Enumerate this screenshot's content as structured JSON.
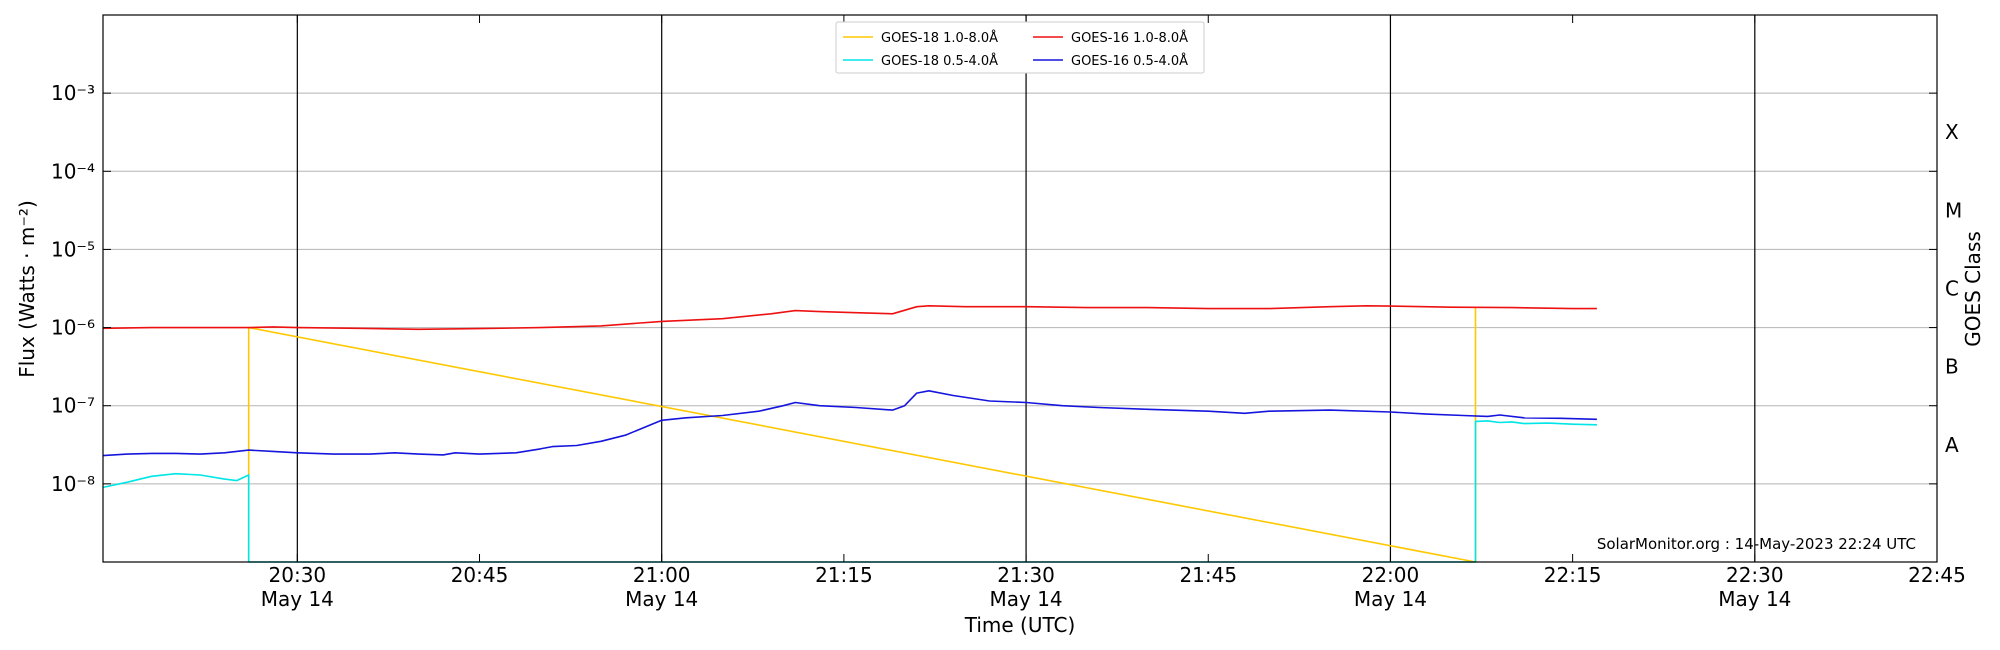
{
  "chart_data": {
    "type": "line",
    "xlabel": "Time (UTC)",
    "ylabel": "Flux (Watts · m⁻²)",
    "y2label": "GOES Class",
    "yscale": "log",
    "xlim": [
      "20:14",
      "22:45"
    ],
    "ylim": [
      1e-09,
      0.01
    ],
    "grid": "y",
    "legend_position": "top-center",
    "credit": "SolarMonitor.org : 14-May-2023 22:24 UTC",
    "x_ticks": [
      {
        "t": "20:30",
        "label": "20:30",
        "sub": "May 14"
      },
      {
        "t": "20:45",
        "label": "20:45",
        "sub": ""
      },
      {
        "t": "21:00",
        "label": "21:00",
        "sub": "May 14"
      },
      {
        "t": "21:15",
        "label": "21:15",
        "sub": ""
      },
      {
        "t": "21:30",
        "label": "21:30",
        "sub": "May 14"
      },
      {
        "t": "21:45",
        "label": "21:45",
        "sub": ""
      },
      {
        "t": "22:00",
        "label": "22:00",
        "sub": "May 14"
      },
      {
        "t": "22:15",
        "label": "22:15",
        "sub": ""
      },
      {
        "t": "22:30",
        "label": "22:30",
        "sub": "May 14"
      },
      {
        "t": "22:45",
        "label": "22:45",
        "sub": ""
      }
    ],
    "vlines": [
      "20:30",
      "21:00",
      "21:30",
      "22:00",
      "22:30"
    ],
    "y_ticks": [
      {
        "value": 1e-08,
        "label": "10⁻⁸"
      },
      {
        "value": 1e-07,
        "label": "10⁻⁷"
      },
      {
        "value": 1e-06,
        "label": "10⁻⁶"
      },
      {
        "value": 1e-05,
        "label": "10⁻⁵"
      },
      {
        "value": 0.0001,
        "label": "10⁻⁴"
      },
      {
        "value": 0.001,
        "label": "10⁻³"
      }
    ],
    "goes_classes": [
      {
        "label": "A",
        "value": 3.16e-08
      },
      {
        "label": "B",
        "value": 3.16e-07
      },
      {
        "label": "C",
        "value": 3.16e-06
      },
      {
        "label": "M",
        "value": 3.16e-05
      },
      {
        "label": "X",
        "value": 0.000316
      }
    ],
    "series": [
      {
        "name": "GOES-18 1.0-8.0Å",
        "color": "#ffc800",
        "points": [
          [
            "20:26",
            "1e-9"
          ],
          [
            "20:26",
            "1e-6"
          ],
          [
            "22:07",
            "1e-9"
          ],
          [
            "22:07",
            "1.8e-6"
          ]
        ]
      },
      {
        "name": "GOES-18 0.5-4.0Å",
        "color": "#00e5e5",
        "points": [
          [
            "20:14",
            "9e-9"
          ],
          [
            "20:16",
            "1.05e-8"
          ],
          [
            "20:18",
            "1.25e-8"
          ],
          [
            "20:20",
            "1.35e-8"
          ],
          [
            "20:22",
            "1.3e-8"
          ],
          [
            "20:24",
            "1.15e-8"
          ],
          [
            "20:25",
            "1.1e-8"
          ],
          [
            "20:26",
            "1.3e-8"
          ],
          [
            "20:26",
            "1e-9"
          ],
          [
            "22:07",
            "1e-9"
          ],
          [
            "22:07",
            "6.3e-8"
          ],
          [
            "22:08",
            "6.4e-8"
          ],
          [
            "22:09",
            "6.1e-8"
          ],
          [
            "22:10",
            "6.2e-8"
          ],
          [
            "22:11",
            "5.9e-8"
          ],
          [
            "22:13",
            "6e-8"
          ],
          [
            "22:15",
            "5.8e-8"
          ],
          [
            "22:17",
            "5.7e-8"
          ]
        ]
      },
      {
        "name": "GOES-16 1.0-8.0Å",
        "color": "#ee1111",
        "points": [
          [
            "20:14",
            "9.8e-7"
          ],
          [
            "20:18",
            "1e-6"
          ],
          [
            "20:26",
            "1e-6"
          ],
          [
            "20:28",
            "1.02e-6"
          ],
          [
            "20:30",
            "1e-6"
          ],
          [
            "20:35",
            "9.8e-7"
          ],
          [
            "20:40",
            "9.5e-7"
          ],
          [
            "20:45",
            "9.7e-7"
          ],
          [
            "20:50",
            "1e-6"
          ],
          [
            "20:55",
            "1.05e-6"
          ],
          [
            "21:00",
            "1.2e-6"
          ],
          [
            "21:05",
            "1.3e-6"
          ],
          [
            "21:09",
            "1.5e-6"
          ],
          [
            "21:11",
            "1.65e-6"
          ],
          [
            "21:13",
            "1.6e-6"
          ],
          [
            "21:16",
            "1.55e-6"
          ],
          [
            "21:19",
            "1.5e-6"
          ],
          [
            "21:21",
            "1.85e-6"
          ],
          [
            "21:22",
            "1.9e-6"
          ],
          [
            "21:25",
            "1.85e-6"
          ],
          [
            "21:30",
            "1.85e-6"
          ],
          [
            "21:35",
            "1.8e-6"
          ],
          [
            "21:40",
            "1.8e-6"
          ],
          [
            "21:45",
            "1.75e-6"
          ],
          [
            "21:50",
            "1.75e-6"
          ],
          [
            "21:55",
            "1.85e-6"
          ],
          [
            "21:58",
            "1.9e-6"
          ],
          [
            "22:00",
            "1.88e-6"
          ],
          [
            "22:05",
            "1.82e-6"
          ],
          [
            "22:10",
            "1.8e-6"
          ],
          [
            "22:15",
            "1.75e-6"
          ],
          [
            "22:17",
            "1.75e-6"
          ]
        ]
      },
      {
        "name": "GOES-16 0.5-4.0Å",
        "color": "#1515dd",
        "points": [
          [
            "20:14",
            "2.3e-8"
          ],
          [
            "20:16",
            "2.4e-8"
          ],
          [
            "20:18",
            "2.45e-8"
          ],
          [
            "20:20",
            "2.45e-8"
          ],
          [
            "20:22",
            "2.4e-8"
          ],
          [
            "20:24",
            "2.5e-8"
          ],
          [
            "20:26",
            "2.7e-8"
          ],
          [
            "20:28",
            "2.6e-8"
          ],
          [
            "20:30",
            "2.5e-8"
          ],
          [
            "20:33",
            "2.4e-8"
          ],
          [
            "20:36",
            "2.4e-8"
          ],
          [
            "20:38",
            "2.5e-8"
          ],
          [
            "20:40",
            "2.4e-8"
          ],
          [
            "20:42",
            "2.35e-8"
          ],
          [
            "20:43",
            "2.5e-8"
          ],
          [
            "20:45",
            "2.4e-8"
          ],
          [
            "20:48",
            "2.5e-8"
          ],
          [
            "20:50",
            "2.8e-8"
          ],
          [
            "20:51",
            "3e-8"
          ],
          [
            "20:53",
            "3.1e-8"
          ],
          [
            "20:55",
            "3.5e-8"
          ],
          [
            "20:57",
            "4.2e-8"
          ],
          [
            "21:00",
            "6.5e-8"
          ],
          [
            "21:02",
            "7e-8"
          ],
          [
            "21:05",
            "7.5e-8"
          ],
          [
            "21:08",
            "8.5e-8"
          ],
          [
            "21:10",
            "1e-7"
          ],
          [
            "21:11",
            "1.1e-7"
          ],
          [
            "21:13",
            "1e-7"
          ],
          [
            "21:16",
            "9.5e-8"
          ],
          [
            "21:19",
            "8.8e-8"
          ],
          [
            "21:20",
            "1e-7"
          ],
          [
            "21:21",
            "1.45e-7"
          ],
          [
            "21:22",
            "1.55e-7"
          ],
          [
            "21:24",
            "1.35e-7"
          ],
          [
            "21:27",
            "1.15e-7"
          ],
          [
            "21:30",
            "1.1e-7"
          ],
          [
            "21:33",
            "1e-7"
          ],
          [
            "21:36",
            "9.5e-8"
          ],
          [
            "21:40",
            "9e-8"
          ],
          [
            "21:45",
            "8.5e-8"
          ],
          [
            "21:48",
            "8e-8"
          ],
          [
            "21:50",
            "8.5e-8"
          ],
          [
            "21:55",
            "8.8e-8"
          ],
          [
            "22:00",
            "8.3e-8"
          ],
          [
            "22:03",
            "7.8e-8"
          ],
          [
            "22:06",
            "7.5e-8"
          ],
          [
            "22:08",
            "7.3e-8"
          ],
          [
            "22:09",
            "7.6e-8"
          ],
          [
            "22:11",
            "7e-8"
          ],
          [
            "22:14",
            "6.9e-8"
          ],
          [
            "22:17",
            "6.7e-8"
          ]
        ]
      }
    ]
  }
}
